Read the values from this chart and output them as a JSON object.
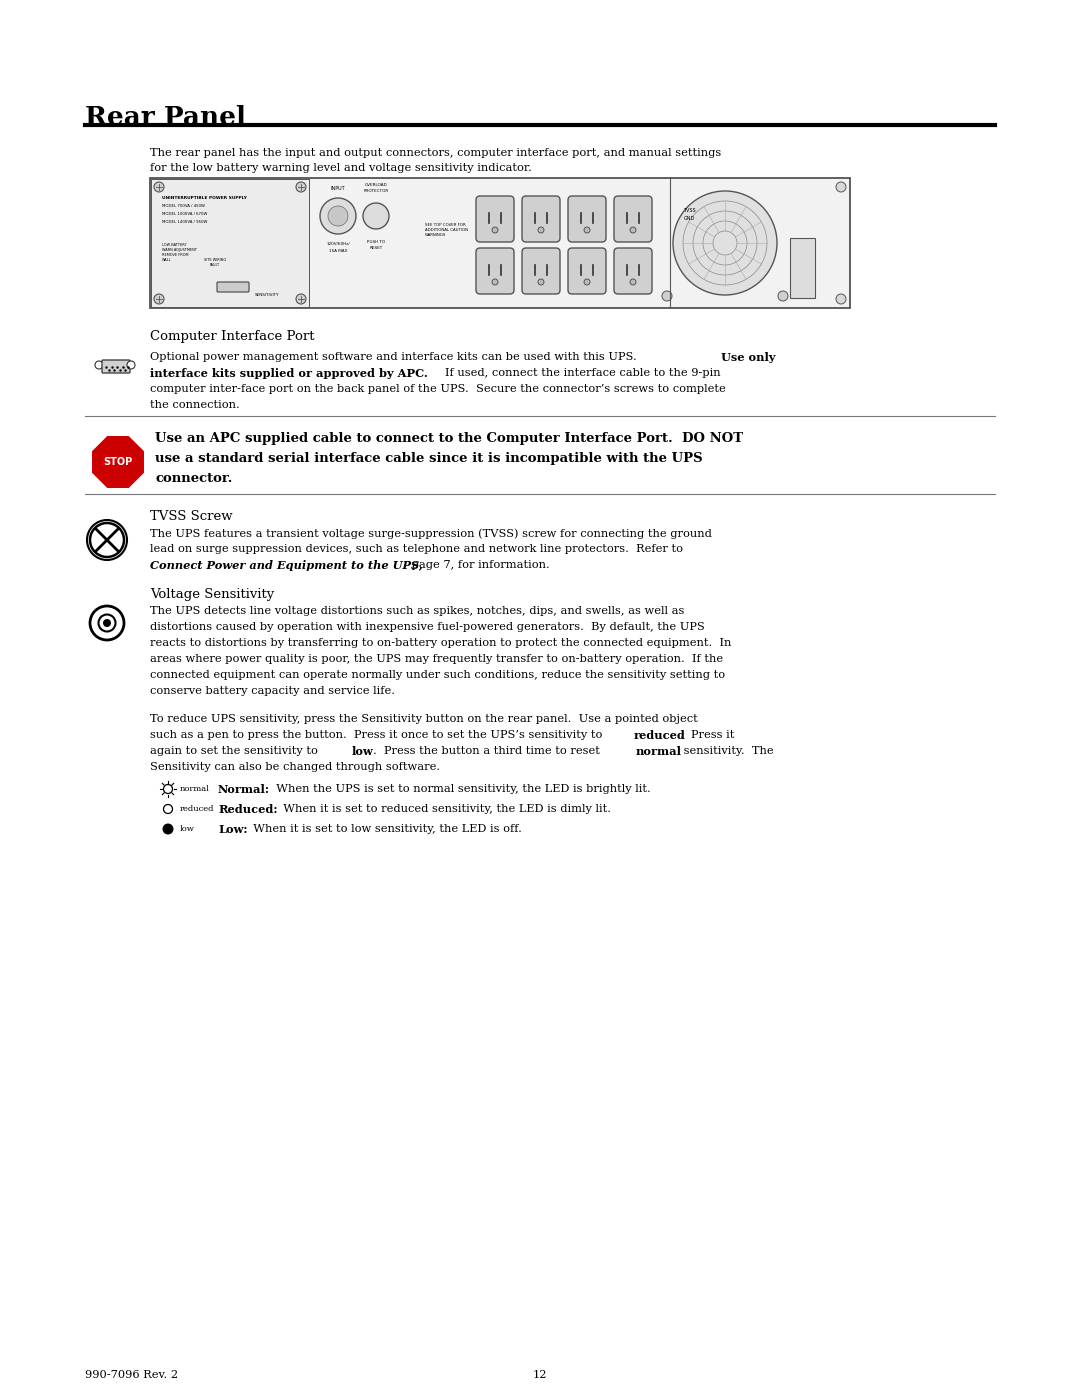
{
  "title": "Rear Panel",
  "page_bg": "#ffffff",
  "text_color": "#000000",
  "footer_left": "990-7096 Rev. 2",
  "footer_center": "12"
}
